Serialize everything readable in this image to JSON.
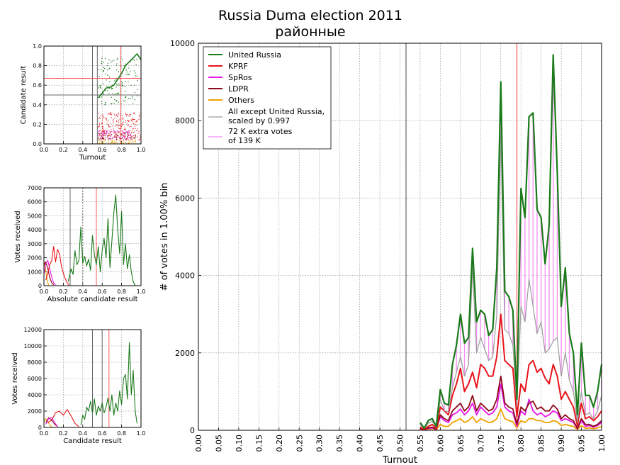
{
  "title": {
    "line1": "Russia Duma election 2011",
    "line2": "районные"
  },
  "colors": {
    "united_russia": "#1a7a1a",
    "kprf": "#e8141a",
    "spros": "#e817e8",
    "ldpr": "#8b0b1a",
    "others": "#f0a000",
    "all_except": "#9a9a9a",
    "extra": "#f48cf4",
    "redline": "#ff5555",
    "grayline": "#666666"
  },
  "chart_data": [
    {
      "id": "main",
      "type": "line",
      "xlabel": "Turnout",
      "ylabel": "# of votes in 1.00% bin",
      "xlim": [
        0,
        1
      ],
      "ylim": [
        0,
        10000
      ],
      "xticks": [
        "0.00",
        "0.05",
        "0.10",
        "0.15",
        "0.20",
        "0.25",
        "0.30",
        "0.35",
        "0.40",
        "0.45",
        "0.50",
        "0.55",
        "0.60",
        "0.65",
        "0.70",
        "0.75",
        "0.80",
        "0.85",
        "0.90",
        "0.95",
        "1.00"
      ],
      "yticks": [
        "0",
        "2000",
        "4000",
        "6000",
        "8000",
        "10000"
      ],
      "grid": true,
      "vlines": {
        "gray": 0.515,
        "red": 0.79
      },
      "legend_position": "top-left",
      "legend": [
        {
          "label": "United Russia",
          "key": "united_russia"
        },
        {
          "label": "KPRF",
          "key": "kprf"
        },
        {
          "label": "SpRos",
          "key": "spros"
        },
        {
          "label": "LDPR",
          "key": "ldpr"
        },
        {
          "label": "Others",
          "key": "others"
        },
        {
          "label1": "All except United Russia,",
          "label2": "scaled by 0.997",
          "key": "all_except"
        },
        {
          "label1": "72 K extra votes",
          "label2": " of 139 K",
          "key": "extra"
        }
      ],
      "x": [
        0.55,
        0.56,
        0.57,
        0.58,
        0.59,
        0.6,
        0.61,
        0.62,
        0.63,
        0.64,
        0.65,
        0.66,
        0.67,
        0.68,
        0.69,
        0.7,
        0.71,
        0.72,
        0.73,
        0.74,
        0.75,
        0.76,
        0.77,
        0.78,
        0.79,
        0.8,
        0.81,
        0.82,
        0.83,
        0.84,
        0.85,
        0.86,
        0.87,
        0.88,
        0.89,
        0.9,
        0.91,
        0.92,
        0.93,
        0.94,
        0.95,
        0.96,
        0.97,
        0.98,
        0.99,
        1.0
      ],
      "series": [
        {
          "name": "United Russia",
          "key": "united_russia",
          "width": 2.2,
          "values": [
            200,
            50,
            250,
            300,
            100,
            1050,
            700,
            650,
            1700,
            2200,
            3000,
            2250,
            2400,
            4700,
            2800,
            3100,
            3000,
            2450,
            2600,
            4200,
            9000,
            3600,
            3450,
            3100,
            800,
            6250,
            5500,
            8100,
            8200,
            5700,
            5500,
            4300,
            5300,
            9700,
            6700,
            3200,
            4200,
            2500,
            2000,
            400,
            2250,
            900,
            900,
            600,
            1000,
            1700
          ]
        },
        {
          "name": "All except United Russia",
          "key": "all_except",
          "width": 1.2,
          "values": [
            150,
            40,
            180,
            230,
            80,
            800,
            500,
            480,
            1100,
            1500,
            1900,
            1400,
            1700,
            4200,
            2000,
            2400,
            2100,
            1800,
            1900,
            3000,
            7700,
            2600,
            2500,
            2200,
            600,
            3200,
            2800,
            3900,
            3200,
            2500,
            2800,
            2000,
            2100,
            2300,
            2400,
            1400,
            2000,
            1300,
            1000,
            200,
            1000,
            400,
            450,
            300,
            500,
            900
          ]
        },
        {
          "name": "KPRF",
          "key": "kprf",
          "width": 2,
          "values": [
            80,
            20,
            100,
            150,
            50,
            600,
            500,
            400,
            900,
            1200,
            1600,
            1000,
            1200,
            1500,
            1100,
            1700,
            1600,
            1400,
            1400,
            1900,
            3000,
            1800,
            1700,
            1600,
            350,
            1200,
            1000,
            1700,
            1800,
            1500,
            1600,
            1350,
            1200,
            1700,
            1400,
            800,
            1000,
            800,
            600,
            120,
            700,
            300,
            350,
            250,
            350,
            500
          ]
        },
        {
          "name": "LDPR",
          "key": "ldpr",
          "width": 1.8,
          "values": [
            50,
            15,
            60,
            80,
            30,
            400,
            300,
            250,
            500,
            600,
            700,
            500,
            600,
            900,
            500,
            700,
            600,
            500,
            550,
            800,
            1400,
            700,
            600,
            550,
            150,
            600,
            500,
            700,
            750,
            550,
            600,
            500,
            500,
            650,
            550,
            300,
            400,
            300,
            250,
            50,
            300,
            150,
            150,
            100,
            150,
            250
          ]
        },
        {
          "name": "SpRos",
          "key": "spros",
          "width": 1.8,
          "values": [
            40,
            10,
            50,
            60,
            20,
            350,
            250,
            200,
            400,
            450,
            550,
            400,
            500,
            700,
            400,
            600,
            500,
            400,
            450,
            600,
            1200,
            600,
            500,
            450,
            100,
            500,
            400,
            800,
            500,
            400,
            450,
            350,
            400,
            500,
            450,
            250,
            300,
            250,
            200,
            40,
            250,
            100,
            120,
            80,
            120,
            200
          ]
        },
        {
          "name": "Others",
          "key": "others",
          "width": 1.8,
          "values": [
            20,
            5,
            30,
            40,
            10,
            150,
            100,
            100,
            200,
            250,
            300,
            200,
            250,
            350,
            200,
            300,
            250,
            200,
            220,
            300,
            550,
            300,
            250,
            220,
            60,
            250,
            200,
            300,
            300,
            250,
            250,
            200,
            200,
            250,
            220,
            120,
            150,
            120,
            100,
            20,
            120,
            50,
            60,
            40,
            60,
            100
          ]
        }
      ]
    },
    {
      "id": "scatter",
      "type": "scatter",
      "xlabel": "Turnout",
      "ylabel": "Candidate result",
      "xlim": [
        0,
        1
      ],
      "ylim": [
        0,
        1
      ],
      "xticks": [
        "0.0",
        "0.2",
        "0.4",
        "0.6",
        "0.8",
        "1.0"
      ],
      "yticks": [
        "0.0",
        "0.2",
        "0.4",
        "0.6",
        "0.8",
        "1.0"
      ],
      "grid": true,
      "vlines": {
        "gray1": 0.5,
        "gray2": 0.55,
        "red": 0.79
      },
      "hlines": {
        "red": 0.67,
        "gray": 0.5
      },
      "trend_united_russia": {
        "x": [
          0.56,
          0.6,
          0.64,
          0.68,
          0.72,
          0.76,
          0.8,
          0.84,
          0.88,
          0.92,
          0.96,
          1.0
        ],
        "y": [
          0.47,
          0.52,
          0.57,
          0.58,
          0.6,
          0.66,
          0.72,
          0.8,
          0.84,
          0.88,
          0.92,
          0.86
        ]
      }
    },
    {
      "id": "absolute",
      "type": "line",
      "xlabel": "Absolute candidate result",
      "ylabel": "Votes received",
      "xlim": [
        0,
        1
      ],
      "ylim": [
        0,
        7000
      ],
      "xticks": [
        "0.0",
        "0.2",
        "0.4",
        "0.6",
        "0.8",
        "1.0"
      ],
      "yticks": [
        "0",
        "1000",
        "2000",
        "3000",
        "4000",
        "5000",
        "6000",
        "7000"
      ],
      "grid": true,
      "vlines": {
        "gray": 0.27,
        "gray_dashed": 0.4,
        "red": 0.54
      },
      "series": [
        {
          "name": "United Russia",
          "key": "united_russia",
          "x": [
            0.25,
            0.28,
            0.3,
            0.32,
            0.34,
            0.36,
            0.38,
            0.4,
            0.42,
            0.44,
            0.46,
            0.48,
            0.5,
            0.52,
            0.54,
            0.56,
            0.58,
            0.6,
            0.62,
            0.64,
            0.66,
            0.68,
            0.7,
            0.72,
            0.74,
            0.76,
            0.78,
            0.8,
            0.82,
            0.84,
            0.86,
            0.88,
            0.9,
            0.92,
            0.94
          ],
          "values": [
            300,
            1200,
            800,
            2500,
            1500,
            1800,
            4200,
            1600,
            2100,
            1400,
            1900,
            1100,
            3600,
            2200,
            1500,
            2800,
            1000,
            2500,
            3400,
            2000,
            4800,
            1300,
            3200,
            5200,
            6500,
            4000,
            2300,
            5300,
            1500,
            3000,
            1200,
            2200,
            1000,
            300,
            0
          ]
        },
        {
          "name": "KPRF",
          "key": "kprf",
          "x": [
            0.02,
            0.04,
            0.06,
            0.08,
            0.1,
            0.12,
            0.14,
            0.16,
            0.18,
            0.2,
            0.22,
            0.24,
            0.26
          ],
          "values": [
            400,
            900,
            1500,
            1800,
            2800,
            1700,
            2600,
            2300,
            1400,
            900,
            500,
            200,
            50
          ]
        },
        {
          "name": "SpRos",
          "key": "spros",
          "x": [
            0.0,
            0.02,
            0.04,
            0.06,
            0.08,
            0.1,
            0.12
          ],
          "values": [
            800,
            1600,
            1800,
            1200,
            600,
            200,
            50
          ]
        },
        {
          "name": "LDPR",
          "key": "ldpr",
          "x": [
            0.0,
            0.02,
            0.04,
            0.06,
            0.08,
            0.1
          ],
          "values": [
            1500,
            1700,
            1200,
            600,
            200,
            50
          ]
        },
        {
          "name": "Others",
          "key": "others",
          "x": [
            0.0,
            0.01,
            0.02,
            0.03,
            0.04,
            0.05
          ],
          "values": [
            1300,
            1700,
            1000,
            500,
            200,
            50
          ]
        }
      ]
    },
    {
      "id": "candidate",
      "type": "line",
      "xlabel": "Candidate result",
      "ylabel": "Votes received",
      "xlim": [
        0,
        1
      ],
      "ylim": [
        0,
        12000
      ],
      "xticks": [
        "0.0",
        "0.2",
        "0.4",
        "0.6",
        "0.8",
        "1.0"
      ],
      "yticks": [
        "0",
        "2000",
        "4000",
        "6000",
        "8000",
        "10000",
        "12000"
      ],
      "grid": true,
      "vlines": {
        "gray1": 0.5,
        "gray2": 0.6,
        "red": 0.67
      },
      "series": [
        {
          "name": "United Russia",
          "key": "united_russia",
          "x": [
            0.38,
            0.4,
            0.42,
            0.44,
            0.46,
            0.48,
            0.5,
            0.52,
            0.54,
            0.56,
            0.58,
            0.6,
            0.62,
            0.64,
            0.66,
            0.68,
            0.7,
            0.72,
            0.74,
            0.76,
            0.78,
            0.8,
            0.82,
            0.84,
            0.86,
            0.88,
            0.9,
            0.92,
            0.94,
            0.96
          ],
          "values": [
            300,
            1500,
            1000,
            2500,
            2000,
            3200,
            1800,
            3500,
            1500,
            2600,
            2000,
            3000,
            1800,
            2500,
            3600,
            2000,
            4000,
            1500,
            3000,
            2000,
            4500,
            2800,
            6000,
            6500,
            3500,
            10400,
            4000,
            7000,
            2000,
            500
          ]
        },
        {
          "name": "KPRF",
          "key": "kprf",
          "x": [
            0.04,
            0.08,
            0.12,
            0.16,
            0.2,
            0.24,
            0.28,
            0.32,
            0.36
          ],
          "values": [
            600,
            900,
            1800,
            2000,
            1500,
            2200,
            1400,
            500,
            100
          ]
        },
        {
          "name": "SpRos",
          "key": "spros",
          "x": [
            0.02,
            0.05,
            0.08,
            0.11,
            0.14
          ],
          "values": [
            400,
            1100,
            1200,
            600,
            100
          ]
        },
        {
          "name": "LDPR",
          "key": "ldpr",
          "x": [
            0.02,
            0.05,
            0.08,
            0.11,
            0.14
          ],
          "values": [
            600,
            1200,
            900,
            400,
            100
          ]
        },
        {
          "name": "Others",
          "key": "others",
          "x": [
            0.0,
            0.02,
            0.04,
            0.06,
            0.08
          ],
          "values": [
            700,
            1100,
            700,
            300,
            50
          ]
        }
      ]
    }
  ]
}
